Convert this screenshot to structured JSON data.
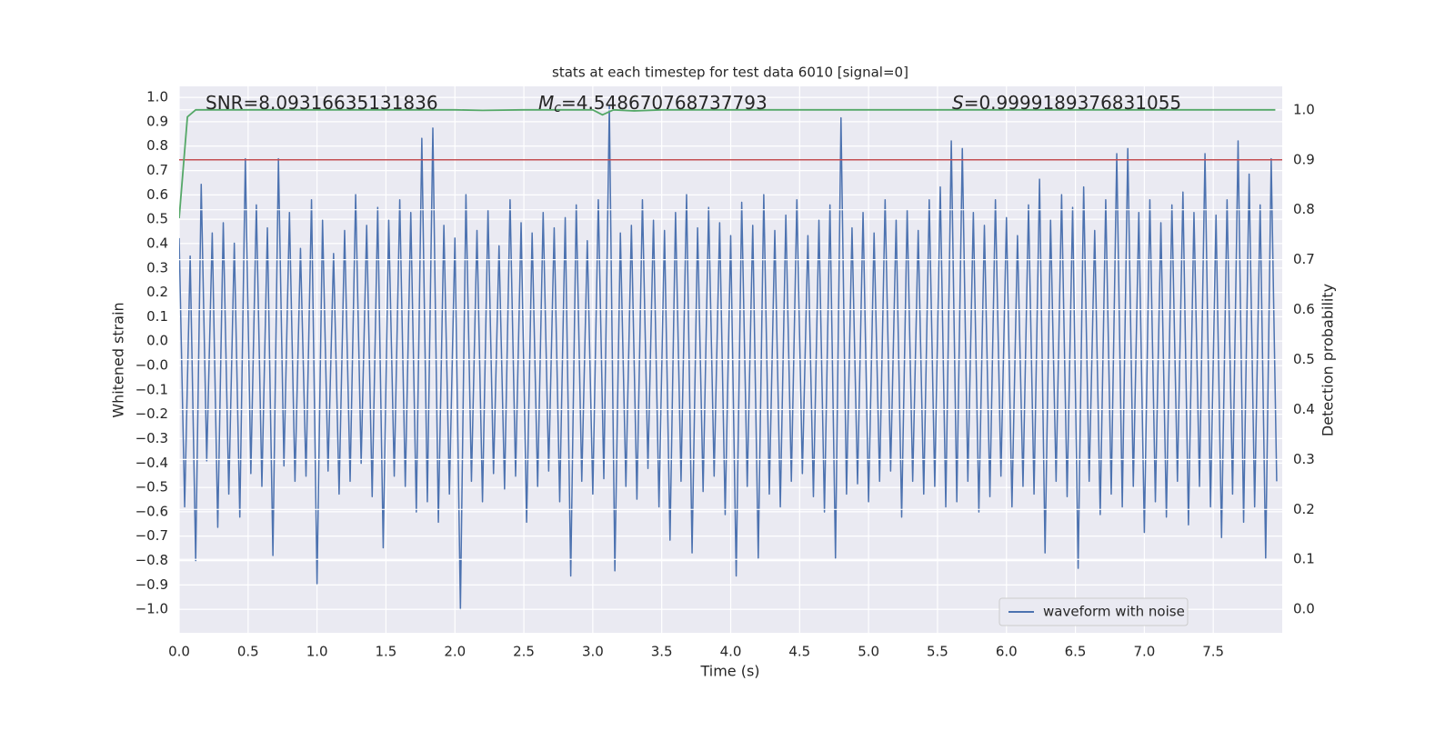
{
  "chart_data": {
    "type": "line",
    "title": "stats at each timestep for test data 6010 [signal=0]",
    "xlabel": "Time (s)",
    "ylabel": "Whitened strain",
    "y2label": "Detection probability",
    "annotations": [
      {
        "text": "SNR=8.09316635131836"
      },
      {
        "symbol": "M",
        "sub": "c",
        "text": "=4.548670768737793"
      },
      {
        "symbol": "S",
        "text": "=0.9999189376831055"
      }
    ],
    "xlim": [
      0,
      8.0
    ],
    "ylim": [
      -1.092,
      1.043
    ],
    "y2lim": [
      -0.047,
      1.047
    ],
    "xticks": [
      {
        "value": 0,
        "label": "0.0"
      },
      {
        "value": 0.5,
        "label": "0.5"
      },
      {
        "value": 1,
        "label": "1.0"
      },
      {
        "value": 1.5,
        "label": "1.5"
      },
      {
        "value": 2,
        "label": "2.0"
      },
      {
        "value": 2.5,
        "label": "2.5"
      },
      {
        "value": 3,
        "label": "3.0"
      },
      {
        "value": 3.5,
        "label": "3.5"
      },
      {
        "value": 4,
        "label": "4.0"
      },
      {
        "value": 4.5,
        "label": "4.5"
      },
      {
        "value": 5,
        "label": "5.0"
      },
      {
        "value": 5.5,
        "label": "5.5"
      },
      {
        "value": 6,
        "label": "6.0"
      },
      {
        "value": 6.5,
        "label": "6.5"
      },
      {
        "value": 7,
        "label": "7.0"
      },
      {
        "value": 7.5,
        "label": "7.5"
      }
    ],
    "yticks": [
      {
        "value": -1,
        "label": "−1.0"
      },
      {
        "value": -0.905,
        "label": "−0.9"
      },
      {
        "value": -0.81,
        "label": "−0.8"
      },
      {
        "value": -0.714,
        "label": "−0.7"
      },
      {
        "value": -0.619,
        "label": "−0.6"
      },
      {
        "value": -0.524,
        "label": "−0.5"
      },
      {
        "value": -0.429,
        "label": "−0.4"
      },
      {
        "value": -0.333,
        "label": "−0.3"
      },
      {
        "value": -0.238,
        "label": "−0.2"
      },
      {
        "value": -0.143,
        "label": "−0.1"
      },
      {
        "value": -0.048,
        "label": "−0.0"
      },
      {
        "value": 0.048,
        "label": "0.0"
      },
      {
        "value": 0.143,
        "label": "0.1"
      },
      {
        "value": 0.238,
        "label": "0.2"
      },
      {
        "value": 0.333,
        "label": "0.3"
      },
      {
        "value": 0.429,
        "label": "0.4"
      },
      {
        "value": 0.524,
        "label": "0.5"
      },
      {
        "value": 0.619,
        "label": "0.6"
      },
      {
        "value": 0.714,
        "label": "0.7"
      },
      {
        "value": 0.81,
        "label": "0.8"
      },
      {
        "value": 0.905,
        "label": "0.9"
      },
      {
        "value": 1,
        "label": "1.0"
      }
    ],
    "y2ticks": [
      {
        "value": 0,
        "label": "0.0"
      },
      {
        "value": 0.1,
        "label": "0.1"
      },
      {
        "value": 0.2,
        "label": "0.2"
      },
      {
        "value": 0.3,
        "label": "0.3"
      },
      {
        "value": 0.4,
        "label": "0.4"
      },
      {
        "value": 0.5,
        "label": "0.5"
      },
      {
        "value": 0.6,
        "label": "0.6"
      },
      {
        "value": 0.7,
        "label": "0.7"
      },
      {
        "value": 0.8,
        "label": "0.8"
      },
      {
        "value": 0.9,
        "label": "0.9"
      },
      {
        "value": 1,
        "label": "1.0"
      }
    ],
    "grid": true,
    "legend": "lower right",
    "threshold": {
      "value": 0.9,
      "axis": "y2",
      "color": "#c44e52"
    },
    "series": [
      {
        "name": "waveform with noise",
        "color": "#4c72b0",
        "axis": "y",
        "x": [
          0,
          0.04,
          0.08,
          0.12,
          0.16,
          0.2,
          0.24,
          0.28,
          0.32,
          0.36,
          0.4,
          0.44,
          0.48,
          0.52,
          0.56,
          0.6,
          0.64,
          0.68,
          0.72,
          0.76,
          0.8,
          0.84,
          0.88,
          0.92,
          0.96,
          1,
          1.04,
          1.08,
          1.12,
          1.16,
          1.2,
          1.24,
          1.28,
          1.32,
          1.36,
          1.4,
          1.44,
          1.48,
          1.52,
          1.56,
          1.6,
          1.64,
          1.68,
          1.72,
          1.76,
          1.8,
          1.84,
          1.88,
          1.92,
          1.96,
          2,
          2.04,
          2.08,
          2.12,
          2.16,
          2.2,
          2.24,
          2.28,
          2.32,
          2.36,
          2.4,
          2.44,
          2.48,
          2.52,
          2.56,
          2.6,
          2.64,
          2.68,
          2.72,
          2.76,
          2.8,
          2.84,
          2.88,
          2.92,
          2.96,
          3,
          3.04,
          3.08,
          3.12,
          3.16,
          3.2,
          3.24,
          3.28,
          3.32,
          3.36,
          3.4,
          3.44,
          3.48,
          3.52,
          3.56,
          3.6,
          3.64,
          3.68,
          3.72,
          3.76,
          3.8,
          3.84,
          3.88,
          3.92,
          3.96,
          4,
          4.04,
          4.08,
          4.12,
          4.16,
          4.2,
          4.24,
          4.28,
          4.32,
          4.36,
          4.4,
          4.44,
          4.48,
          4.52,
          4.56,
          4.6,
          4.64,
          4.68,
          4.72,
          4.76,
          4.8,
          4.84,
          4.88,
          4.92,
          4.96,
          5,
          5.04,
          5.08,
          5.12,
          5.16,
          5.2,
          5.24,
          5.28,
          5.32,
          5.36,
          5.4,
          5.44,
          5.48,
          5.52,
          5.56,
          5.6,
          5.64,
          5.68,
          5.72,
          5.76,
          5.8,
          5.84,
          5.88,
          5.92,
          5.96,
          6,
          6.04,
          6.08,
          6.12,
          6.16,
          6.2,
          6.24,
          6.28,
          6.32,
          6.36,
          6.4,
          6.44,
          6.48,
          6.52,
          6.56,
          6.6,
          6.64,
          6.68,
          6.72,
          6.76,
          6.8,
          6.84,
          6.88,
          6.92,
          6.96,
          7,
          7.04,
          7.08,
          7.12,
          7.16,
          7.2,
          7.24,
          7.28,
          7.32,
          7.36,
          7.4,
          7.44,
          7.48,
          7.52,
          7.56,
          7.6,
          7.64,
          7.68,
          7.72,
          7.76,
          7.8,
          7.84,
          7.88,
          7.92,
          7.96
        ],
        "values": [
          0.45,
          -0.6,
          0.38,
          -0.81,
          0.66,
          -0.42,
          0.47,
          -0.68,
          0.51,
          -0.55,
          0.43,
          -0.64,
          0.76,
          -0.47,
          0.58,
          -0.52,
          0.49,
          -0.79,
          0.76,
          -0.44,
          0.55,
          -0.5,
          0.41,
          -0.48,
          0.6,
          -0.9,
          0.52,
          -0.46,
          0.39,
          -0.55,
          0.48,
          -0.5,
          0.62,
          -0.43,
          0.5,
          -0.56,
          0.57,
          -0.76,
          0.52,
          -0.48,
          0.6,
          -0.52,
          0.55,
          -0.62,
          0.84,
          -0.58,
          0.88,
          -0.66,
          0.5,
          -0.55,
          0.45,
          -1.0,
          0.62,
          -0.5,
          0.48,
          -0.58,
          0.56,
          -0.47,
          0.42,
          -0.53,
          0.6,
          -0.48,
          0.51,
          -0.66,
          0.47,
          -0.52,
          0.55,
          -0.46,
          0.49,
          -0.58,
          0.53,
          -0.87,
          0.58,
          -0.5,
          0.44,
          -0.55,
          0.6,
          -0.49,
          0.97,
          -0.85,
          0.47,
          -0.52,
          0.5,
          -0.57,
          0.6,
          -0.45,
          0.52,
          -0.6,
          0.48,
          -0.73,
          0.55,
          -0.5,
          0.62,
          -0.78,
          0.49,
          -0.54,
          0.57,
          -0.48,
          0.51,
          -0.63,
          0.46,
          -0.87,
          0.59,
          -0.52,
          0.5,
          -0.8,
          0.62,
          -0.55,
          0.48,
          -0.6,
          0.54,
          -0.5,
          0.6,
          -0.47,
          0.46,
          -0.56,
          0.52,
          -0.62,
          0.58,
          -0.8,
          0.92,
          -0.55,
          0.49,
          -0.51,
          0.55,
          -0.58,
          0.47,
          -0.5,
          0.6,
          -0.46,
          0.52,
          -0.64,
          0.56,
          -0.5,
          0.48,
          -0.55,
          0.6,
          -0.52,
          0.65,
          -0.6,
          0.83,
          -0.58,
          0.8,
          -0.5,
          0.55,
          -0.62,
          0.5,
          -0.56,
          0.6,
          -0.48,
          0.53,
          -0.6,
          0.46,
          -0.52,
          0.58,
          -0.55,
          0.68,
          -0.78,
          0.52,
          -0.5,
          0.62,
          -0.56,
          0.57,
          -0.84,
          0.65,
          -0.5,
          0.48,
          -0.63,
          0.6,
          -0.55,
          0.78,
          -0.6,
          0.8,
          -0.52,
          0.55,
          -0.7,
          0.6,
          -0.58,
          0.51,
          -0.64,
          0.58,
          -0.5,
          0.63,
          -0.67,
          0.55,
          -0.52,
          0.78,
          -0.6,
          0.54,
          -0.72,
          0.6,
          -0.55,
          0.83,
          -0.66,
          0.7,
          -0.6,
          0.58,
          -0.8,
          0.76,
          -0.5
        ]
      },
      {
        "color": "#55a868",
        "axis": "y2",
        "x": [
          0,
          0.06,
          0.12,
          0.5,
          1.0,
          2.0,
          2.2,
          2.5,
          3.0,
          3.07,
          3.15,
          3.3,
          3.5,
          5.0,
          7.95
        ],
        "values": [
          0.783,
          0.986,
          1.0,
          1.0,
          1.0,
          1.0,
          0.999,
          1.0,
          1.0,
          0.99,
          1.0,
          0.998,
          1.0,
          1.0,
          1.0
        ]
      }
    ]
  }
}
